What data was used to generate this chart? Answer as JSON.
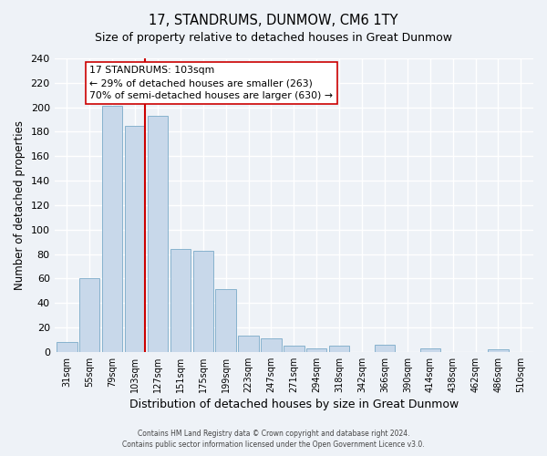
{
  "title": "17, STANDRUMS, DUNMOW, CM6 1TY",
  "subtitle": "Size of property relative to detached houses in Great Dunmow",
  "xlabel": "Distribution of detached houses by size in Great Dunmow",
  "ylabel": "Number of detached properties",
  "bar_labels": [
    "31sqm",
    "55sqm",
    "79sqm",
    "103sqm",
    "127sqm",
    "151sqm",
    "175sqm",
    "199sqm",
    "223sqm",
    "247sqm",
    "271sqm",
    "294sqm",
    "318sqm",
    "342sqm",
    "366sqm",
    "390sqm",
    "414sqm",
    "438sqm",
    "462sqm",
    "486sqm",
    "510sqm"
  ],
  "bar_values": [
    8,
    60,
    201,
    185,
    193,
    84,
    83,
    51,
    13,
    11,
    5,
    3,
    5,
    0,
    6,
    0,
    3,
    0,
    0,
    2,
    0
  ],
  "bar_color": "#c8d8ea",
  "bar_edge_color": "#7aaac8",
  "vline_index": 3,
  "vline_color": "#cc0000",
  "ylim": [
    0,
    240
  ],
  "yticks": [
    0,
    20,
    40,
    60,
    80,
    100,
    120,
    140,
    160,
    180,
    200,
    220,
    240
  ],
  "annotation_title": "17 STANDRUMS: 103sqm",
  "annotation_line1": "← 29% of detached houses are smaller (263)",
  "annotation_line2": "70% of semi-detached houses are larger (630) →",
  "annotation_box_color": "#ffffff",
  "annotation_box_edge": "#cc0000",
  "footer1": "Contains HM Land Registry data © Crown copyright and database right 2024.",
  "footer2": "Contains public sector information licensed under the Open Government Licence v3.0.",
  "background_color": "#eef2f7",
  "grid_color": "#ffffff"
}
